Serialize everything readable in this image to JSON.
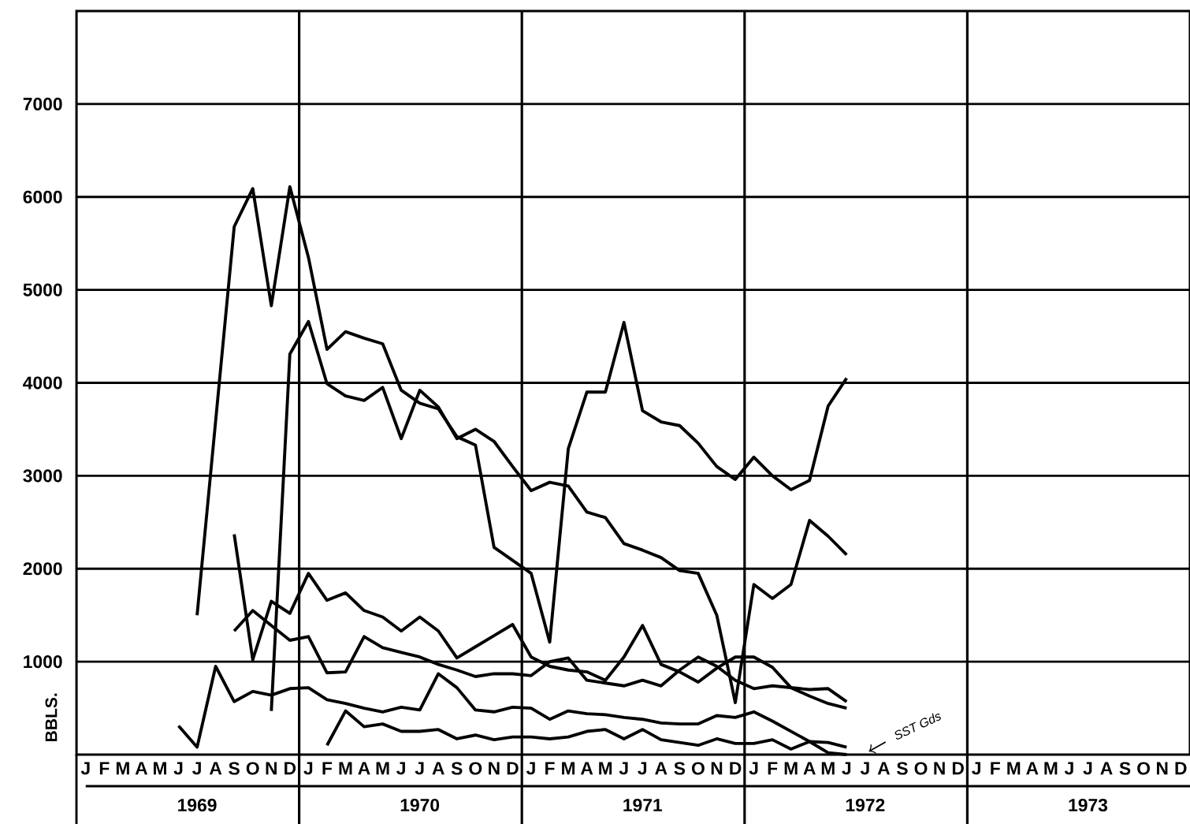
{
  "chart_data": {
    "type": "line",
    "ylabel": "BBLS.",
    "categories": [
      "J",
      "F",
      "M",
      "A",
      "M",
      "J",
      "J",
      "A",
      "S",
      "O",
      "N",
      "D",
      "J",
      "F",
      "M",
      "A",
      "M",
      "J",
      "J",
      "A",
      "S",
      "O",
      "N",
      "D",
      "J",
      "F",
      "M",
      "A",
      "M",
      "J",
      "J",
      "A",
      "S",
      "O",
      "N",
      "D",
      "J",
      "F",
      "M",
      "A",
      "M",
      "J",
      "J",
      "A",
      "S",
      "O",
      "N",
      "D",
      "J",
      "F",
      "M",
      "A",
      "M",
      "J",
      "J",
      "A",
      "S",
      "O",
      "N",
      "D"
    ],
    "ylim": [
      0,
      8000
    ],
    "yticks": [
      1000,
      2000,
      3000,
      4000,
      5000,
      6000,
      7000
    ],
    "grid": "y",
    "annotations": [
      "1969",
      "1970",
      "1971",
      "1972",
      "1973",
      "SST Gds"
    ],
    "series": [
      {
        "color": "#000000",
        "values": [
          null,
          null,
          null,
          null,
          null,
          null,
          1500,
          3590,
          5680,
          6090,
          4830,
          6110,
          5350,
          4360,
          4550,
          4480,
          4420,
          3920,
          3780,
          3720,
          3420,
          3330,
          2230,
          2090,
          1950,
          1210,
          3290,
          3900,
          3900,
          4650,
          3700,
          3580,
          3540,
          3350,
          3100,
          2960,
          3200,
          3000,
          2850,
          2950,
          3750,
          4050,
          null,
          null,
          null,
          null,
          null,
          null,
          null,
          null,
          null,
          null,
          null,
          null,
          null,
          null,
          null,
          null,
          null,
          null
        ]
      },
      {
        "color": "#000000",
        "values": [
          null,
          null,
          null,
          null,
          null,
          null,
          null,
          null,
          null,
          null,
          470,
          4310,
          4660,
          3990,
          3860,
          3810,
          3950,
          3400,
          3920,
          3740,
          3400,
          3500,
          3370,
          3100,
          2840,
          2930,
          2890,
          2610,
          2550,
          2270,
          2200,
          2120,
          1980,
          1950,
          1500,
          560,
          1830,
          1680,
          1830,
          2520,
          2350,
          2150,
          null,
          null,
          null,
          null,
          null,
          null,
          null,
          null,
          null,
          null,
          null,
          null,
          null,
          null,
          null,
          null,
          null,
          null
        ]
      },
      {
        "color": "#000000",
        "values": [
          null,
          null,
          null,
          null,
          null,
          null,
          null,
          null,
          2370,
          1020,
          1650,
          1520,
          1950,
          1660,
          1740,
          1550,
          1480,
          1330,
          1480,
          1330,
          1040,
          1160,
          1280,
          1400,
          1050,
          950,
          910,
          890,
          800,
          1050,
          1390,
          970,
          890,
          780,
          930,
          1050,
          1050,
          940,
          720,
          630,
          550,
          500,
          null,
          null,
          null,
          null,
          null,
          null,
          null,
          null,
          null,
          null,
          null,
          null,
          null,
          null,
          null,
          null,
          null,
          null
        ]
      },
      {
        "color": "#000000",
        "values": [
          null,
          null,
          null,
          null,
          null,
          null,
          null,
          null,
          1330,
          1550,
          1390,
          1230,
          1270,
          880,
          890,
          1270,
          1150,
          1100,
          1050,
          970,
          910,
          840,
          870,
          870,
          850,
          1000,
          1040,
          800,
          770,
          740,
          800,
          740,
          910,
          1050,
          950,
          800,
          710,
          740,
          720,
          700,
          710,
          570,
          null,
          null,
          null,
          null,
          null,
          null,
          null,
          null,
          null,
          null,
          null,
          null,
          null,
          null,
          null,
          null,
          null,
          null
        ]
      },
      {
        "color": "#000000",
        "values": [
          null,
          null,
          null,
          null,
          null,
          310,
          80,
          950,
          570,
          680,
          640,
          710,
          720,
          590,
          550,
          500,
          460,
          510,
          480,
          870,
          720,
          480,
          460,
          510,
          500,
          380,
          470,
          440,
          430,
          400,
          380,
          340,
          330,
          330,
          420,
          400,
          460,
          360,
          250,
          140,
          20,
          0,
          null,
          null,
          null,
          null,
          null,
          null,
          null,
          null,
          null,
          null,
          null,
          null,
          null,
          null,
          null,
          null,
          null,
          null
        ]
      },
      {
        "color": "#000000",
        "values": [
          null,
          null,
          null,
          null,
          null,
          null,
          null,
          null,
          null,
          null,
          null,
          null,
          null,
          100,
          470,
          300,
          330,
          250,
          250,
          270,
          170,
          210,
          160,
          190,
          190,
          170,
          190,
          250,
          270,
          170,
          270,
          160,
          130,
          100,
          170,
          120,
          120,
          160,
          60,
          140,
          130,
          80,
          null,
          null,
          null,
          null,
          null,
          null,
          null,
          null,
          null,
          null,
          null,
          null,
          null,
          null,
          null,
          null,
          null,
          null
        ]
      }
    ]
  }
}
